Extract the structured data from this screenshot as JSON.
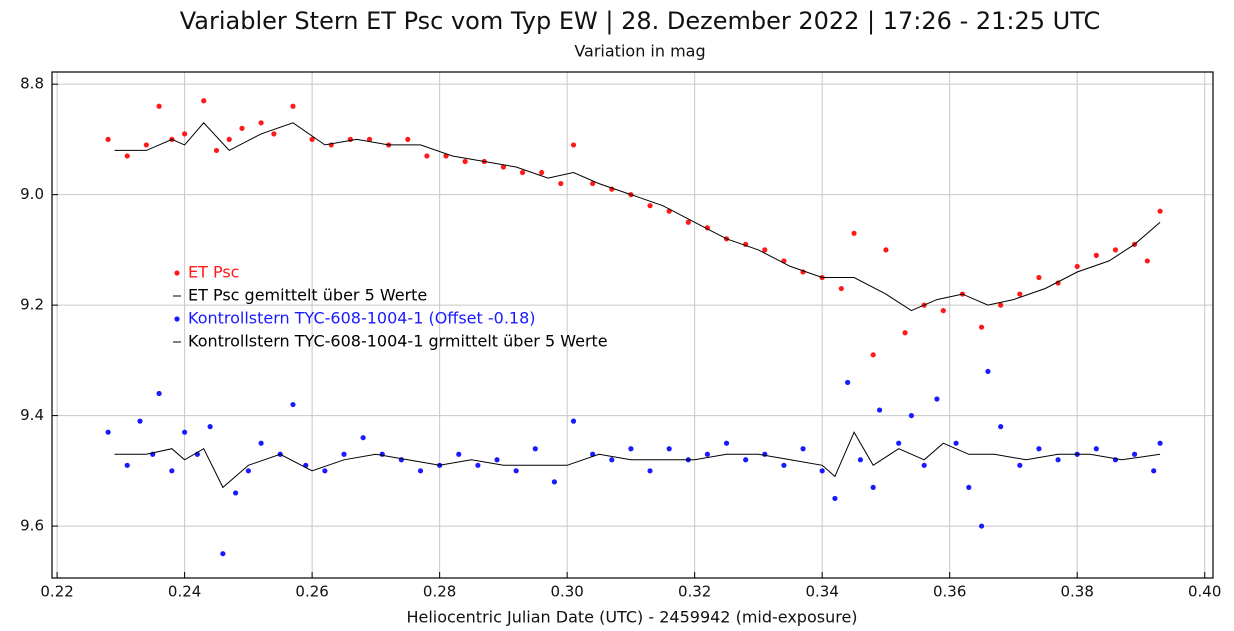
{
  "chart_data": {
    "type": "scatter",
    "title": "Variabler Stern ET Psc vom Typ EW | 28. Dezember 2022 | 17:26 - 21:25 UTC",
    "subtitle": "Variation in mag",
    "x_label": "Heliocentric Julian Date (UTC) - 2459942 (mid-exposure)",
    "xlim": [
      0.2192,
      0.4013
    ],
    "ylim": [
      9.694,
      8.778
    ],
    "xticks": [
      0.22,
      0.24,
      0.26,
      0.28,
      {
        "value": 0.3,
        "label": "0.30"
      },
      0.32,
      0.34,
      0.36,
      0.38,
      {
        "value": 0.4,
        "label": "0.40"
      }
    ],
    "yticks": [
      8.8,
      {
        "value": 9,
        "label": "9.0"
      },
      9.2,
      9.4,
      9.6
    ],
    "grid": true,
    "legend": "left",
    "series": [
      {
        "name": "ET Psc",
        "color": "#ff1a1a",
        "mode": "markers",
        "x": [
          0.228,
          0.231,
          0.234,
          0.236,
          0.238,
          0.24,
          0.243,
          0.245,
          0.247,
          0.249,
          0.252,
          0.254,
          0.257,
          0.26,
          0.263,
          0.266,
          0.269,
          0.272,
          0.275,
          0.278,
          0.281,
          0.284,
          0.287,
          0.29,
          0.293,
          0.296,
          0.299,
          0.301,
          0.304,
          0.307,
          0.31,
          0.313,
          0.316,
          0.319,
          0.322,
          0.325,
          0.328,
          0.331,
          0.334,
          0.337,
          0.34,
          0.343,
          0.345,
          0.348,
          0.35,
          0.353,
          0.356,
          0.359,
          0.362,
          0.365,
          0.368,
          0.371,
          0.374,
          0.377,
          0.38,
          0.383,
          0.386,
          0.389,
          0.391,
          0.393
        ],
        "values": [
          8.9,
          8.93,
          8.91,
          8.84,
          8.9,
          8.89,
          8.83,
          8.92,
          8.9,
          8.88,
          8.87,
          8.89,
          8.84,
          8.9,
          8.91,
          8.9,
          8.9,
          8.91,
          8.9,
          8.93,
          8.93,
          8.94,
          8.94,
          8.95,
          8.96,
          8.96,
          8.98,
          8.91,
          8.98,
          8.99,
          9.0,
          9.02,
          9.03,
          9.05,
          9.06,
          9.08,
          9.09,
          9.1,
          9.12,
          9.14,
          9.15,
          9.17,
          9.07,
          9.29,
          9.1,
          9.25,
          9.2,
          9.21,
          9.18,
          9.24,
          9.2,
          9.18,
          9.15,
          9.16,
          9.13,
          9.11,
          9.1,
          9.09,
          9.12,
          9.03
        ]
      },
      {
        "name": "ET Psc  gemittelt über 5 Werte",
        "color": "#000000",
        "mode": "line",
        "x": [
          0.229,
          0.234,
          0.238,
          0.24,
          0.243,
          0.247,
          0.252,
          0.257,
          0.262,
          0.267,
          0.272,
          0.277,
          0.282,
          0.287,
          0.292,
          0.297,
          0.301,
          0.305,
          0.31,
          0.315,
          0.32,
          0.325,
          0.33,
          0.335,
          0.34,
          0.345,
          0.35,
          0.354,
          0.358,
          0.362,
          0.366,
          0.37,
          0.375,
          0.38,
          0.385,
          0.389,
          0.393
        ],
        "values": [
          8.92,
          8.92,
          8.9,
          8.91,
          8.87,
          8.92,
          8.89,
          8.87,
          8.91,
          8.9,
          8.91,
          8.91,
          8.93,
          8.94,
          8.95,
          8.97,
          8.96,
          8.98,
          9.0,
          9.02,
          9.05,
          9.08,
          9.1,
          9.13,
          9.15,
          9.15,
          9.18,
          9.21,
          9.19,
          9.18,
          9.2,
          9.19,
          9.17,
          9.14,
          9.12,
          9.09,
          9.05
        ]
      },
      {
        "name": "Kontrollstern TYC-608-1004-1  (Offset -0.18)",
        "color": "#1a1aff",
        "mode": "markers",
        "x": [
          0.228,
          0.231,
          0.233,
          0.235,
          0.236,
          0.238,
          0.24,
          0.242,
          0.244,
          0.246,
          0.248,
          0.25,
          0.252,
          0.255,
          0.257,
          0.259,
          0.262,
          0.265,
          0.268,
          0.271,
          0.274,
          0.277,
          0.28,
          0.283,
          0.286,
          0.289,
          0.292,
          0.295,
          0.298,
          0.301,
          0.304,
          0.307,
          0.31,
          0.313,
          0.316,
          0.319,
          0.322,
          0.325,
          0.328,
          0.331,
          0.334,
          0.337,
          0.34,
          0.342,
          0.344,
          0.346,
          0.348,
          0.349,
          0.352,
          0.354,
          0.356,
          0.358,
          0.361,
          0.363,
          0.365,
          0.366,
          0.368,
          0.371,
          0.374,
          0.377,
          0.38,
          0.383,
          0.386,
          0.389,
          0.392,
          0.393
        ],
        "values": [
          9.43,
          9.49,
          9.41,
          9.47,
          9.36,
          9.5,
          9.43,
          9.47,
          9.42,
          9.65,
          9.54,
          9.5,
          9.45,
          9.47,
          9.38,
          9.49,
          9.5,
          9.47,
          9.44,
          9.47,
          9.48,
          9.5,
          9.49,
          9.47,
          9.49,
          9.48,
          9.5,
          9.46,
          9.52,
          9.41,
          9.47,
          9.48,
          9.46,
          9.5,
          9.46,
          9.48,
          9.47,
          9.45,
          9.48,
          9.47,
          9.49,
          9.46,
          9.5,
          9.55,
          9.34,
          9.48,
          9.53,
          9.39,
          9.45,
          9.4,
          9.49,
          9.37,
          9.45,
          9.53,
          9.6,
          9.32,
          9.42,
          9.49,
          9.46,
          9.48,
          9.47,
          9.46,
          9.48,
          9.47,
          9.5,
          9.45
        ]
      },
      {
        "name": "Kontrollstern TYC-608-1004-1  grmittelt über 5 Werte",
        "color": "#000000",
        "mode": "line",
        "x": [
          0.229,
          0.234,
          0.238,
          0.24,
          0.243,
          0.246,
          0.25,
          0.255,
          0.26,
          0.265,
          0.27,
          0.275,
          0.28,
          0.285,
          0.29,
          0.295,
          0.3,
          0.305,
          0.31,
          0.315,
          0.32,
          0.325,
          0.33,
          0.335,
          0.34,
          0.342,
          0.345,
          0.348,
          0.352,
          0.356,
          0.359,
          0.363,
          0.367,
          0.372,
          0.377,
          0.382,
          0.387,
          0.393
        ],
        "values": [
          9.47,
          9.47,
          9.46,
          9.48,
          9.46,
          9.53,
          9.49,
          9.47,
          9.5,
          9.48,
          9.47,
          9.48,
          9.49,
          9.48,
          9.49,
          9.49,
          9.49,
          9.47,
          9.48,
          9.48,
          9.48,
          9.47,
          9.47,
          9.48,
          9.49,
          9.51,
          9.43,
          9.49,
          9.46,
          9.48,
          9.45,
          9.47,
          9.47,
          9.48,
          9.47,
          9.47,
          9.48,
          9.47
        ]
      }
    ]
  }
}
